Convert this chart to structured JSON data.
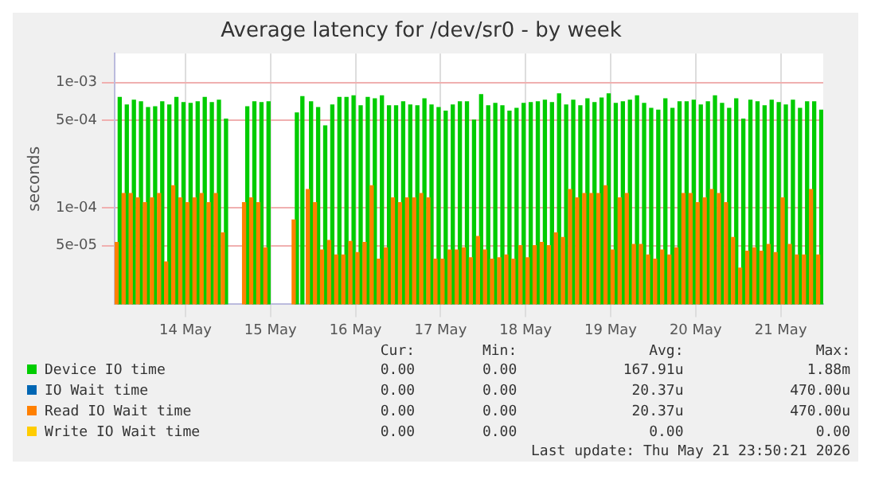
{
  "chart_data": {
    "type": "bar",
    "title": "Average latency for /dev/sr0 - by week",
    "ylabel": "seconds",
    "x": [
      "2026-05-13T17:00",
      "2026-05-13T19:00",
      "2026-05-13T21:00",
      "2026-05-13T23:00",
      "2026-05-14T01:00",
      "2026-05-14T03:00",
      "2026-05-14T05:00",
      "2026-05-14T07:00",
      "2026-05-14T09:00",
      "2026-05-14T11:00",
      "2026-05-14T13:00",
      "2026-05-14T15:00",
      "2026-05-14T17:00",
      "2026-05-14T19:00",
      "2026-05-14T21:00",
      "2026-05-14T23:00",
      "2026-05-15T01:00",
      "2026-05-15T03:00",
      "2026-05-15T05:00",
      "2026-05-15T07:00",
      "2026-05-15T09:00",
      "2026-05-15T11:00",
      "2026-05-15T13:00",
      "2026-05-15T15:00",
      "2026-05-15T17:00",
      "2026-05-15T19:00",
      "2026-05-15T21:00",
      "2026-05-15T23:00",
      "2026-05-16T01:00",
      "2026-05-16T03:00",
      "2026-05-16T05:00",
      "2026-05-16T07:00",
      "2026-05-16T09:00",
      "2026-05-16T11:00",
      "2026-05-16T13:00",
      "2026-05-16T15:00",
      "2026-05-16T17:00",
      "2026-05-16T19:00",
      "2026-05-16T21:00",
      "2026-05-16T23:00",
      "2026-05-17T01:00",
      "2026-05-17T03:00",
      "2026-05-17T05:00",
      "2026-05-17T07:00",
      "2026-05-17T09:00",
      "2026-05-17T11:00",
      "2026-05-17T13:00",
      "2026-05-17T15:00",
      "2026-05-17T17:00",
      "2026-05-17T19:00",
      "2026-05-17T21:00",
      "2026-05-17T23:00",
      "2026-05-18T01:00",
      "2026-05-18T03:00",
      "2026-05-18T05:00",
      "2026-05-18T07:00",
      "2026-05-18T09:00",
      "2026-05-18T11:00",
      "2026-05-18T13:00",
      "2026-05-18T15:00",
      "2026-05-18T17:00",
      "2026-05-18T19:00",
      "2026-05-18T21:00",
      "2026-05-18T23:00",
      "2026-05-19T01:00",
      "2026-05-19T03:00",
      "2026-05-19T05:00",
      "2026-05-19T07:00",
      "2026-05-19T09:00",
      "2026-05-19T11:00",
      "2026-05-19T13:00",
      "2026-05-19T15:00",
      "2026-05-19T17:00",
      "2026-05-19T19:00",
      "2026-05-19T21:00",
      "2026-05-19T23:00",
      "2026-05-20T01:00",
      "2026-05-20T03:00",
      "2026-05-20T05:00",
      "2026-05-20T07:00",
      "2026-05-20T09:00",
      "2026-05-20T11:00",
      "2026-05-20T13:00",
      "2026-05-20T15:00",
      "2026-05-20T17:00",
      "2026-05-20T19:00",
      "2026-05-20T21:00",
      "2026-05-20T23:00",
      "2026-05-21T01:00",
      "2026-05-21T03:00",
      "2026-05-21T05:00",
      "2026-05-21T07:00",
      "2026-05-21T09:00",
      "2026-05-21T11:00",
      "2026-05-21T13:00",
      "2026-05-21T15:00",
      "2026-05-21T17:00",
      "2026-05-21T19:00",
      "2026-05-21T21:00",
      "2026-05-21T23:00"
    ],
    "series": [
      {
        "name": "Device IO time",
        "color": "#00cc00",
        "values": [
          0.00076,
          0.00066,
          0.00072,
          0.0007,
          0.00063,
          0.00064,
          0.0007,
          0.00066,
          0.00076,
          0.00069,
          0.00068,
          0.0007,
          0.00076,
          0.00069,
          0.00072,
          0.00051,
          null,
          null,
          0.00064,
          0.0007,
          0.00069,
          0.0007,
          null,
          null,
          null,
          0.00057,
          0.00077,
          0.0007,
          0.00063,
          0.00045,
          0.00066,
          0.00076,
          0.00076,
          0.00078,
          0.00065,
          0.00076,
          0.00074,
          0.00078,
          0.00065,
          0.00065,
          0.0007,
          0.00066,
          0.00065,
          0.00074,
          0.00066,
          0.00063,
          0.00059,
          0.00066,
          0.0007,
          0.0007,
          0.0005,
          0.0008,
          0.00065,
          0.00068,
          0.00065,
          0.00059,
          0.00062,
          0.00068,
          0.00069,
          0.0007,
          0.00072,
          0.00069,
          0.00081,
          0.00066,
          0.00072,
          0.00065,
          0.00074,
          0.00069,
          0.00075,
          0.00081,
          0.00068,
          0.0007,
          0.00072,
          0.00078,
          0.00068,
          0.00062,
          0.0006,
          0.00074,
          0.00062,
          0.0007,
          0.0007,
          0.00072,
          0.00066,
          0.0007,
          0.00078,
          0.00068,
          0.00062,
          0.00074,
          0.00051,
          0.00072,
          0.0007,
          0.00065,
          0.00072,
          0.00069,
          0.00066,
          0.00072,
          0.00062,
          0.0007,
          0.0007,
          0.0006
        ]
      },
      {
        "name": "IO Wait time",
        "color": "#0066b3",
        "values": [
          null,
          null,
          null,
          null,
          null,
          null,
          null,
          null,
          null,
          null,
          null,
          null,
          null,
          null,
          null,
          null,
          null,
          null,
          null,
          null,
          null,
          null,
          null,
          null,
          null,
          null,
          null,
          null,
          null,
          null,
          null,
          null,
          null,
          null,
          null,
          null,
          null,
          null,
          null,
          null,
          null,
          null,
          null,
          null,
          null,
          null,
          null,
          null,
          null,
          null,
          null,
          null,
          null,
          null,
          null,
          null,
          null,
          null,
          null,
          null,
          null,
          null,
          null,
          null,
          null,
          null,
          null,
          null,
          null,
          null,
          null,
          null,
          null,
          null,
          null,
          null,
          null,
          null,
          null,
          null,
          null,
          null,
          null,
          null,
          null,
          null,
          null,
          null,
          null,
          null,
          null,
          null,
          null,
          null,
          null,
          null,
          null,
          null,
          null,
          null
        ]
      },
      {
        "name": "Read IO Wait time",
        "color": "#ff8000",
        "values": [
          5.3e-05,
          0.00013,
          0.00013,
          0.00012,
          0.00011,
          0.00012,
          0.00013,
          3.7e-05,
          0.00015,
          0.00012,
          0.00011,
          0.00012,
          0.00013,
          0.00011,
          0.00013,
          6.3e-05,
          null,
          null,
          0.00011,
          0.00012,
          0.00011,
          4.8e-05,
          null,
          null,
          null,
          8e-05,
          null,
          0.00014,
          0.00011,
          4.6e-05,
          5.5e-05,
          4.2e-05,
          4.2e-05,
          5.4e-05,
          4.4e-05,
          5.3e-05,
          0.00015,
          3.9e-05,
          4.8e-05,
          0.00012,
          0.00011,
          0.00012,
          0.00012,
          0.00013,
          0.00012,
          3.9e-05,
          3.9e-05,
          4.6e-05,
          4.6e-05,
          4.8e-05,
          4e-05,
          5.9e-05,
          4.6e-05,
          3.9e-05,
          4e-05,
          4.2e-05,
          3.9e-05,
          5e-05,
          4e-05,
          5e-05,
          5.3e-05,
          5e-05,
          6.3e-05,
          5.8e-05,
          0.00014,
          0.00012,
          0.00013,
          0.00013,
          0.00013,
          0.00015,
          4.6e-05,
          0.00012,
          0.00013,
          5.1e-05,
          5.1e-05,
          4.2e-05,
          3.9e-05,
          4.6e-05,
          4.2e-05,
          4.8e-05,
          0.00013,
          0.00013,
          0.00011,
          0.00012,
          0.00014,
          0.00013,
          0.00011,
          5.8e-05,
          3.3e-05,
          4.5e-05,
          4.8e-05,
          4.5e-05,
          5.1e-05,
          4.4e-05,
          0.00012,
          5.1e-05,
          4.2e-05,
          4.2e-05,
          0.00014,
          4.2e-05
        ]
      },
      {
        "name": "Write IO Wait time",
        "color": "#ffcc00",
        "values": [
          null,
          null,
          null,
          null,
          null,
          null,
          null,
          null,
          null,
          null,
          null,
          null,
          null,
          null,
          null,
          null,
          null,
          null,
          null,
          null,
          null,
          null,
          null,
          null,
          null,
          null,
          null,
          null,
          null,
          null,
          null,
          null,
          null,
          null,
          null,
          null,
          null,
          null,
          null,
          null,
          null,
          null,
          null,
          null,
          null,
          null,
          null,
          null,
          null,
          null,
          null,
          null,
          null,
          null,
          null,
          null,
          null,
          null,
          null,
          null,
          null,
          null,
          null,
          null,
          null,
          null,
          null,
          null,
          null,
          null,
          null,
          null,
          null,
          null,
          null,
          null,
          null,
          null,
          null,
          null,
          null,
          null,
          null,
          null,
          null,
          null,
          null,
          null,
          null,
          null,
          null,
          null,
          null,
          null,
          null,
          null,
          null,
          null,
          null,
          null
        ]
      }
    ],
    "log": "y",
    "ylim": [
      1.7e-05,
      0.0017
    ],
    "yticks": [
      {
        "value": 0.001,
        "label": "1e-03"
      },
      {
        "value": 0.0005,
        "label": "5e-04"
      },
      {
        "value": 0.0001,
        "label": "1e-04"
      },
      {
        "value": 5e-05,
        "label": "5e-05"
      }
    ],
    "xlim": [
      "2026-05-13T16:00",
      "2026-05-22T00:00"
    ],
    "xticks": [
      {
        "value": "2026-05-14T12:00",
        "label": "14 May"
      },
      {
        "value": "2026-05-15T12:00",
        "label": "15 May"
      },
      {
        "value": "2026-05-16T12:00",
        "label": "16 May"
      },
      {
        "value": "2026-05-17T12:00",
        "label": "17 May"
      },
      {
        "value": "2026-05-18T12:00",
        "label": "18 May"
      },
      {
        "value": "2026-05-19T12:00",
        "label": "19 May"
      },
      {
        "value": "2026-05-20T12:00",
        "label": "20 May"
      },
      {
        "value": "2026-05-21T12:00",
        "label": "21 May"
      }
    ],
    "grid": true,
    "legend": "bottom",
    "annotations": [
      "Cur:",
      "Min:",
      "Avg:",
      "Max:",
      "0.00",
      "0.00",
      "167.91u",
      "1.88m",
      "0.00",
      "0.00",
      "20.37u",
      "470.00u",
      "0.00",
      "0.00",
      "20.37u",
      "470.00u",
      "0.00",
      "0.00",
      "0.00",
      "0.00",
      "Last update: Thu May 21 23:50:21 2026"
    ]
  }
}
